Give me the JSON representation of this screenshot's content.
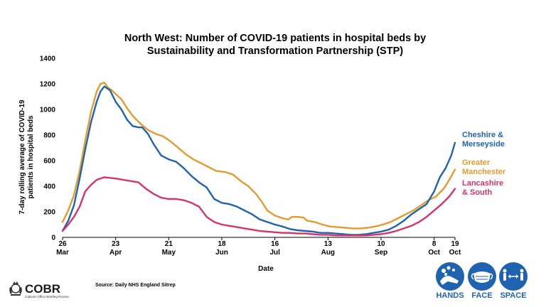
{
  "chart_data": {
    "type": "line",
    "title_lines": [
      "North West: Number of COVID-19 patients in hospital beds by",
      "Sustainability and Transformation Partnership (STP)"
    ],
    "xlabel": "Date",
    "ylabel_lines": [
      "7-day rolling average of COVID-19",
      "patients in hospital beds"
    ],
    "ylim": [
      0,
      1400
    ],
    "yticks": [
      0,
      200,
      400,
      600,
      800,
      1000,
      1200,
      1400
    ],
    "xlim": [
      "2020-03-26",
      "2020-10-19"
    ],
    "xticks": [
      {
        "date": "2020-03-26",
        "day": "26",
        "month": "Mar"
      },
      {
        "date": "2020-04-23",
        "day": "23",
        "month": "Apr"
      },
      {
        "date": "2020-05-21",
        "day": "21",
        "month": "May"
      },
      {
        "date": "2020-06-18",
        "day": "18",
        "month": "Jun"
      },
      {
        "date": "2020-07-16",
        "day": "16",
        "month": "Jul"
      },
      {
        "date": "2020-08-13",
        "day": "13",
        "month": "Aug"
      },
      {
        "date": "2020-09-10",
        "day": "10",
        "month": "Sep"
      },
      {
        "date": "2020-10-08",
        "day": "8",
        "month": "Oct"
      },
      {
        "date": "2020-10-19",
        "day": "19",
        "month": "Oct"
      }
    ],
    "grid": false,
    "legend_placement": "right, at line ends",
    "series": [
      {
        "name": "Greater Manchester",
        "label_lines": [
          "Greater",
          "Manchester"
        ],
        "color": "#e39b2f",
        "points": [
          [
            "2020-03-26",
            120
          ],
          [
            "2020-03-29",
            210
          ],
          [
            "2020-04-01",
            330
          ],
          [
            "2020-04-04",
            520
          ],
          [
            "2020-04-07",
            760
          ],
          [
            "2020-04-10",
            980
          ],
          [
            "2020-04-13",
            1140
          ],
          [
            "2020-04-15",
            1200
          ],
          [
            "2020-04-17",
            1210
          ],
          [
            "2020-04-19",
            1170
          ],
          [
            "2020-04-21",
            1150
          ],
          [
            "2020-04-23",
            1120
          ],
          [
            "2020-04-26",
            1080
          ],
          [
            "2020-04-29",
            1010
          ],
          [
            "2020-05-02",
            950
          ],
          [
            "2020-05-06",
            890
          ],
          [
            "2020-05-10",
            840
          ],
          [
            "2020-05-14",
            810
          ],
          [
            "2020-05-18",
            790
          ],
          [
            "2020-05-22",
            750
          ],
          [
            "2020-05-26",
            700
          ],
          [
            "2020-05-30",
            650
          ],
          [
            "2020-06-03",
            610
          ],
          [
            "2020-06-07",
            580
          ],
          [
            "2020-06-11",
            550
          ],
          [
            "2020-06-15",
            520
          ],
          [
            "2020-06-20",
            510
          ],
          [
            "2020-06-24",
            490
          ],
          [
            "2020-06-28",
            440
          ],
          [
            "2020-07-02",
            400
          ],
          [
            "2020-07-06",
            340
          ],
          [
            "2020-07-09",
            280
          ],
          [
            "2020-07-12",
            210
          ],
          [
            "2020-07-16",
            170
          ],
          [
            "2020-07-20",
            150
          ],
          [
            "2020-07-23",
            140
          ],
          [
            "2020-07-25",
            160
          ],
          [
            "2020-07-28",
            160
          ],
          [
            "2020-07-31",
            155
          ],
          [
            "2020-08-02",
            130
          ],
          [
            "2020-08-06",
            120
          ],
          [
            "2020-08-10",
            100
          ],
          [
            "2020-08-14",
            85
          ],
          [
            "2020-08-18",
            80
          ],
          [
            "2020-08-22",
            75
          ],
          [
            "2020-08-26",
            70
          ],
          [
            "2020-08-30",
            70
          ],
          [
            "2020-09-03",
            75
          ],
          [
            "2020-09-07",
            85
          ],
          [
            "2020-09-11",
            100
          ],
          [
            "2020-09-15",
            120
          ],
          [
            "2020-09-19",
            150
          ],
          [
            "2020-09-23",
            180
          ],
          [
            "2020-09-27",
            210
          ],
          [
            "2020-10-01",
            250
          ],
          [
            "2020-10-05",
            290
          ],
          [
            "2020-10-09",
            320
          ],
          [
            "2020-10-13",
            380
          ],
          [
            "2020-10-16",
            450
          ],
          [
            "2020-10-19",
            530
          ]
        ]
      },
      {
        "name": "Cheshire & Merseyside",
        "label_lines": [
          "Cheshire &",
          "Merseyside"
        ],
        "color": "#1f63b0",
        "points": [
          [
            "2020-03-26",
            50
          ],
          [
            "2020-03-29",
            130
          ],
          [
            "2020-04-01",
            250
          ],
          [
            "2020-04-04",
            460
          ],
          [
            "2020-04-07",
            690
          ],
          [
            "2020-04-10",
            900
          ],
          [
            "2020-04-13",
            1060
          ],
          [
            "2020-04-15",
            1140
          ],
          [
            "2020-04-17",
            1180
          ],
          [
            "2020-04-20",
            1150
          ],
          [
            "2020-04-23",
            1060
          ],
          [
            "2020-04-26",
            1000
          ],
          [
            "2020-04-29",
            920
          ],
          [
            "2020-05-02",
            870
          ],
          [
            "2020-05-05",
            860
          ],
          [
            "2020-05-07",
            860
          ],
          [
            "2020-05-10",
            810
          ],
          [
            "2020-05-13",
            730
          ],
          [
            "2020-05-17",
            640
          ],
          [
            "2020-05-21",
            610
          ],
          [
            "2020-05-25",
            590
          ],
          [
            "2020-05-29",
            540
          ],
          [
            "2020-06-02",
            480
          ],
          [
            "2020-06-06",
            430
          ],
          [
            "2020-06-10",
            390
          ],
          [
            "2020-06-14",
            300
          ],
          [
            "2020-06-18",
            270
          ],
          [
            "2020-06-22",
            260
          ],
          [
            "2020-06-26",
            240
          ],
          [
            "2020-06-30",
            210
          ],
          [
            "2020-07-04",
            180
          ],
          [
            "2020-07-08",
            140
          ],
          [
            "2020-07-12",
            120
          ],
          [
            "2020-07-16",
            100
          ],
          [
            "2020-07-20",
            85
          ],
          [
            "2020-07-24",
            65
          ],
          [
            "2020-07-28",
            55
          ],
          [
            "2020-08-01",
            50
          ],
          [
            "2020-08-05",
            45
          ],
          [
            "2020-08-09",
            35
          ],
          [
            "2020-08-13",
            35
          ],
          [
            "2020-08-17",
            30
          ],
          [
            "2020-08-21",
            25
          ],
          [
            "2020-08-25",
            20
          ],
          [
            "2020-08-29",
            20
          ],
          [
            "2020-09-02",
            25
          ],
          [
            "2020-09-06",
            35
          ],
          [
            "2020-09-10",
            45
          ],
          [
            "2020-09-14",
            60
          ],
          [
            "2020-09-18",
            90
          ],
          [
            "2020-09-22",
            130
          ],
          [
            "2020-09-26",
            180
          ],
          [
            "2020-09-30",
            220
          ],
          [
            "2020-10-04",
            260
          ],
          [
            "2020-10-08",
            360
          ],
          [
            "2020-10-11",
            470
          ],
          [
            "2020-10-14",
            540
          ],
          [
            "2020-10-17",
            640
          ],
          [
            "2020-10-19",
            740
          ]
        ]
      },
      {
        "name": "Lancashire & South",
        "label_lines": [
          "Lancashire",
          "& South"
        ],
        "color": "#d6336c",
        "points": [
          [
            "2020-03-26",
            50
          ],
          [
            "2020-03-29",
            100
          ],
          [
            "2020-04-01",
            160
          ],
          [
            "2020-04-04",
            240
          ],
          [
            "2020-04-07",
            360
          ],
          [
            "2020-04-10",
            410
          ],
          [
            "2020-04-13",
            450
          ],
          [
            "2020-04-15",
            460
          ],
          [
            "2020-04-17",
            470
          ],
          [
            "2020-04-20",
            465
          ],
          [
            "2020-04-23",
            460
          ],
          [
            "2020-04-27",
            450
          ],
          [
            "2020-05-01",
            440
          ],
          [
            "2020-05-05",
            430
          ],
          [
            "2020-05-09",
            380
          ],
          [
            "2020-05-13",
            340
          ],
          [
            "2020-05-17",
            310
          ],
          [
            "2020-05-21",
            300
          ],
          [
            "2020-05-25",
            300
          ],
          [
            "2020-05-29",
            290
          ],
          [
            "2020-06-02",
            270
          ],
          [
            "2020-06-06",
            240
          ],
          [
            "2020-06-10",
            160
          ],
          [
            "2020-06-14",
            120
          ],
          [
            "2020-06-18",
            100
          ],
          [
            "2020-06-22",
            90
          ],
          [
            "2020-06-26",
            80
          ],
          [
            "2020-06-30",
            70
          ],
          [
            "2020-07-04",
            60
          ],
          [
            "2020-07-08",
            50
          ],
          [
            "2020-07-12",
            45
          ],
          [
            "2020-07-16",
            40
          ],
          [
            "2020-07-20",
            35
          ],
          [
            "2020-07-24",
            35
          ],
          [
            "2020-07-28",
            30
          ],
          [
            "2020-08-01",
            30
          ],
          [
            "2020-08-05",
            25
          ],
          [
            "2020-08-09",
            20
          ],
          [
            "2020-08-13",
            20
          ],
          [
            "2020-08-17",
            15
          ],
          [
            "2020-08-21",
            15
          ],
          [
            "2020-08-25",
            15
          ],
          [
            "2020-08-29",
            15
          ],
          [
            "2020-09-02",
            15
          ],
          [
            "2020-09-06",
            20
          ],
          [
            "2020-09-10",
            25
          ],
          [
            "2020-09-14",
            35
          ],
          [
            "2020-09-18",
            50
          ],
          [
            "2020-09-22",
            70
          ],
          [
            "2020-09-26",
            90
          ],
          [
            "2020-09-30",
            120
          ],
          [
            "2020-10-04",
            160
          ],
          [
            "2020-10-08",
            210
          ],
          [
            "2020-10-12",
            260
          ],
          [
            "2020-10-16",
            320
          ],
          [
            "2020-10-19",
            380
          ]
        ]
      }
    ]
  },
  "source": "Source: Daily NHS England Sitrep",
  "branding": {
    "org_short": "COBR",
    "org_sub": "Cabinet Office Briefing Rooms",
    "badges": [
      {
        "label": "HANDS",
        "icon": "hands-washing-icon"
      },
      {
        "label": "FACE",
        "icon": "face-mask-icon"
      },
      {
        "label": "SPACE",
        "icon": "distancing-icon"
      }
    ],
    "badge_color": "#1f63b0"
  }
}
